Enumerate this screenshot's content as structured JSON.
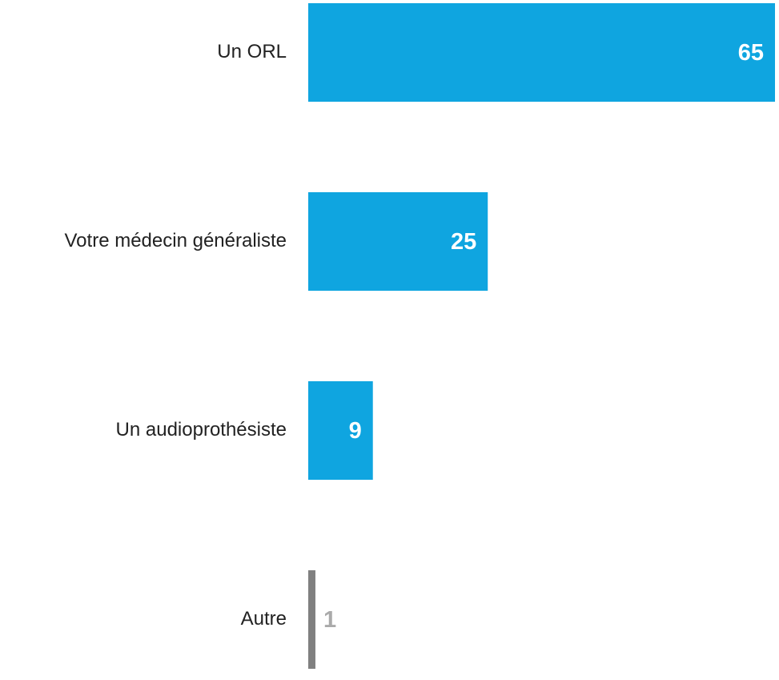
{
  "chart_data": {
    "type": "bar",
    "orientation": "horizontal",
    "categories": [
      "Un ORL",
      "Votre médecin généraliste",
      "Un audioprothésiste",
      "Autre"
    ],
    "values": [
      65,
      25,
      9,
      1
    ],
    "colors": [
      "#0fa5e0",
      "#0fa5e0",
      "#0fa5e0",
      "#808080"
    ],
    "xlim": [
      0,
      65
    ]
  }
}
